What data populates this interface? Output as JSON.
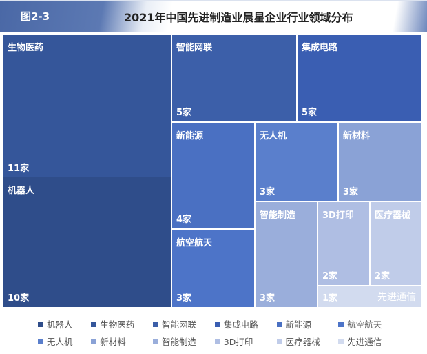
{
  "header": {
    "figure_label": "图2-3",
    "title": "2021年中国先进制造业晨星企业行业领域分布"
  },
  "chart_data": {
    "type": "treemap",
    "title": "2021年中国先进制造业晨星企业行业领域分布",
    "unit": "家",
    "categories": [
      "机器人",
      "生物医药",
      "智能网联",
      "集成电路",
      "新能源",
      "航空航天",
      "无人机",
      "新材料",
      "智能制造",
      "3D打印",
      "医疗器械",
      "先进通信"
    ],
    "values": [
      10,
      11,
      5,
      5,
      4,
      3,
      3,
      3,
      3,
      2,
      2,
      1
    ],
    "value_labels": [
      "10家",
      "11家",
      "5家",
      "5家",
      "4家",
      "3家",
      "3家",
      "3家",
      "3家",
      "2家",
      "2家",
      "1家"
    ],
    "colors": [
      "#2f4d8a",
      "#35569a",
      "#3c5fa9",
      "#3a5eb2",
      "#4a70c2",
      "#4d74c8",
      "#5a7fcc",
      "#8aa2d6",
      "#9aaedb",
      "#afbee3",
      "#c0cce9",
      "#d2dbef"
    ],
    "legend": "bottom"
  }
}
